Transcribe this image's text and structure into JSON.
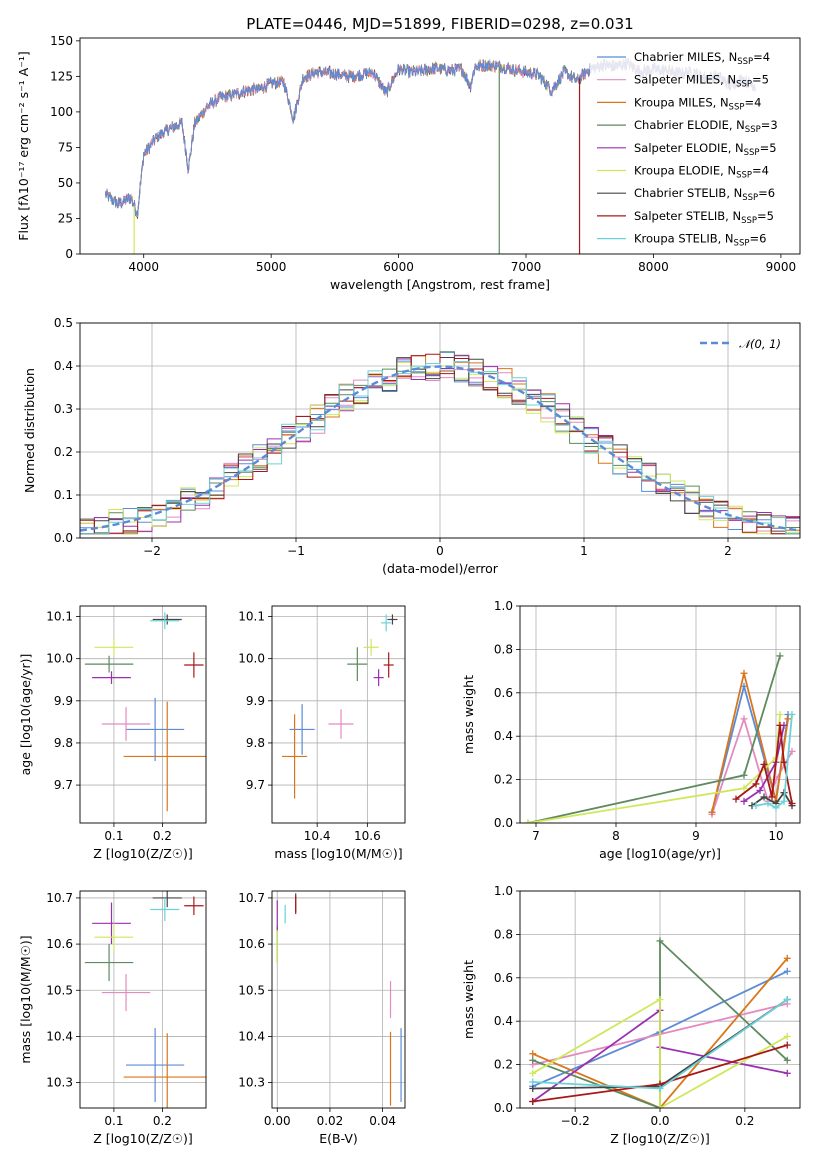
{
  "figure": {
    "title": "PLATE=0446, MJD=51899, FIBERID=0298, z=0.031"
  },
  "series_styles": [
    {
      "name": "Chabrier MILES",
      "nssp": "4",
      "color": "#5b8bd6"
    },
    {
      "name": "Salpeter MILES",
      "nssp": "5",
      "color": "#e48ac2"
    },
    {
      "name": "Kroupa MILES",
      "nssp": "4",
      "color": "#d9761a"
    },
    {
      "name": "Chabrier ELODIE",
      "nssp": "3",
      "color": "#5e8a5e"
    },
    {
      "name": "Salpeter ELODIE",
      "nssp": "5",
      "color": "#9a30b0"
    },
    {
      "name": "Kroupa ELODIE",
      "nssp": "4",
      "color": "#cfe85a"
    },
    {
      "name": "Chabrier STELIB",
      "nssp": "6",
      "color": "#454545"
    },
    {
      "name": "Salpeter STELIB",
      "nssp": "5",
      "color": "#a81818"
    },
    {
      "name": "Kroupa STELIB",
      "nssp": "6",
      "color": "#6ad2d8"
    }
  ],
  "chart_data": [
    {
      "id": "spectrum",
      "type": "line",
      "title": "PLATE=0446, MJD=51899, FIBERID=0298, z=0.031",
      "xlabel": "wavelength [Angstrom, rest frame]",
      "ylabel": "Flux [fλ10⁻¹⁷ erg cm⁻² s⁻¹ A⁻¹]",
      "xlim": [
        3500,
        9150
      ],
      "ylim": [
        0,
        152
      ],
      "xticks": [
        4000,
        5000,
        6000,
        7000,
        8000,
        9000
      ],
      "yticks": [
        0,
        25,
        50,
        75,
        100,
        125,
        150
      ],
      "grid": false,
      "legend": "right",
      "legend_entries": [
        "Chabrier MILES, N_SSP=4",
        "Salpeter MILES, N_SSP=5",
        "Kroupa MILES, N_SSP=4",
        "Chabrier ELODIE, N_SSP=3",
        "Salpeter ELODIE, N_SSP=5",
        "Kroupa ELODIE, N_SSP=4",
        "Chabrier STELIB, N_SSP=6",
        "Salpeter STELIB, N_SSP=5",
        "Kroupa STELIB, N_SSP=6"
      ],
      "envelope": {
        "x": [
          3700,
          3800,
          3900,
          3950,
          4000,
          4100,
          4200,
          4300,
          4350,
          4400,
          4500,
          4600,
          4700,
          4800,
          4900,
          5000,
          5100,
          5175,
          5250,
          5350,
          5500,
          5600,
          5700,
          5800,
          5900,
          6000,
          6100,
          6200,
          6300,
          6400,
          6500,
          6563,
          6600,
          6700,
          6800,
          6900,
          7000,
          7100,
          7200,
          7300,
          7400,
          7500,
          7600,
          7700,
          7800,
          7900,
          8000,
          8100,
          8200,
          8300,
          8400,
          8500,
          8600,
          8700,
          8800
        ],
        "y": [
          42,
          35,
          40,
          28,
          70,
          82,
          88,
          92,
          60,
          92,
          104,
          110,
          112,
          115,
          116,
          120,
          121,
          95,
          124,
          128,
          127,
          125,
          126,
          128,
          113,
          130,
          128,
          129,
          131,
          129,
          130,
          118,
          132,
          133,
          132,
          130,
          128,
          126,
          115,
          128,
          122,
          130,
          133,
          132,
          134,
          128,
          130,
          129,
          127,
          128,
          124,
          125,
          119,
          123,
          118
        ]
      },
      "dropouts": [
        {
          "series": "Kroupa ELODIE",
          "x": 3925
        },
        {
          "series": "Chabrier ELODIE",
          "x": 6790
        },
        {
          "series": "Salpeter STELIB",
          "x": 7420
        }
      ]
    },
    {
      "id": "residuals",
      "type": "histogram",
      "xlabel": "(data-model)/error",
      "ylabel": "Normed distribution",
      "xlim": [
        -2.5,
        2.5
      ],
      "ylim": [
        0,
        0.5
      ],
      "xticks": [
        -2,
        -1,
        0,
        1,
        2
      ],
      "yticks": [
        0.0,
        0.1,
        0.2,
        0.3,
        0.4,
        0.5
      ],
      "grid": true,
      "legend": "top-right",
      "reference_curve": "𝒩(0, 1)",
      "bin_width": 0.1
    },
    {
      "id": "age-vs-Z",
      "type": "scatter",
      "xlabel": "Z [log10(Z/Z☉)]",
      "ylabel": "age  [log10(age/yr)]",
      "xlim": [
        0.03,
        0.29
      ],
      "ylim": [
        9.61,
        10.125
      ],
      "xticks": [
        0.1,
        0.2
      ],
      "yticks": [
        9.7,
        9.8,
        9.9,
        10.0,
        10.1
      ],
      "grid": true,
      "points": [
        {
          "series": "Chabrier MILES",
          "x": 0.185,
          "y": 9.832,
          "xerr": 0.06,
          "yerr": 0.075
        },
        {
          "series": "Salpeter MILES",
          "x": 0.125,
          "y": 9.845,
          "xerr": 0.05,
          "yerr": 0.04
        },
        {
          "series": "Kroupa MILES",
          "x": 0.21,
          "y": 9.768,
          "xerr": 0.09,
          "yerr": 0.13
        },
        {
          "series": "Chabrier ELODIE",
          "x": 0.09,
          "y": 9.987,
          "xerr": 0.05,
          "yerr": 0.02
        },
        {
          "series": "Salpeter ELODIE",
          "x": 0.095,
          "y": 9.955,
          "xerr": 0.04,
          "yerr": 0.015
        },
        {
          "series": "Kroupa ELODIE",
          "x": 0.1,
          "y": 10.027,
          "xerr": 0.04,
          "yerr": 0.02
        },
        {
          "series": "Chabrier STELIB",
          "x": 0.21,
          "y": 10.093,
          "xerr": 0.03,
          "yerr": 0.012
        },
        {
          "series": "Salpeter STELIB",
          "x": 0.265,
          "y": 9.985,
          "xerr": 0.02,
          "yerr": 0.03
        },
        {
          "series": "Kroupa STELIB",
          "x": 0.205,
          "y": 10.09,
          "xerr": 0.03,
          "yerr": 0.02
        }
      ]
    },
    {
      "id": "age-vs-mass",
      "type": "scatter",
      "xlabel": "mass [log10(M/M☉)]",
      "ylabel": "",
      "xlim": [
        10.22,
        10.75
      ],
      "ylim": [
        9.61,
        10.125
      ],
      "xticks": [
        10.4,
        10.6
      ],
      "yticks": [
        9.7,
        9.8,
        9.9,
        10.0,
        10.1
      ],
      "grid": true,
      "points": [
        {
          "series": "Chabrier MILES",
          "x": 10.34,
          "y": 9.832,
          "xerr": 0.05,
          "yerr": 0.06
        },
        {
          "series": "Salpeter MILES",
          "x": 10.495,
          "y": 9.845,
          "xerr": 0.05,
          "yerr": 0.035
        },
        {
          "series": "Kroupa MILES",
          "x": 10.31,
          "y": 9.768,
          "xerr": 0.05,
          "yerr": 0.1
        },
        {
          "series": "Chabrier ELODIE",
          "x": 10.56,
          "y": 9.987,
          "xerr": 0.04,
          "yerr": 0.04
        },
        {
          "series": "Salpeter ELODIE",
          "x": 10.645,
          "y": 9.955,
          "xerr": 0.02,
          "yerr": 0.02
        },
        {
          "series": "Kroupa ELODIE",
          "x": 10.615,
          "y": 10.027,
          "xerr": 0.03,
          "yerr": 0.02
        },
        {
          "series": "Chabrier STELIB",
          "x": 10.7,
          "y": 10.093,
          "xerr": 0.02,
          "yerr": 0.012
        },
        {
          "series": "Salpeter STELIB",
          "x": 10.685,
          "y": 9.985,
          "xerr": 0.02,
          "yerr": 0.03
        },
        {
          "series": "Kroupa STELIB",
          "x": 10.675,
          "y": 10.085,
          "xerr": 0.02,
          "yerr": 0.02
        }
      ]
    },
    {
      "id": "mass-weight-vs-age",
      "type": "line",
      "xlabel": "age  [log10(age/yr)]",
      "ylabel": "mass weight",
      "xlim": [
        6.8,
        10.3
      ],
      "ylim": [
        0,
        1
      ],
      "xticks": [
        7,
        8,
        9,
        10
      ],
      "yticks": [
        0.0,
        0.2,
        0.4,
        0.6,
        0.8,
        1.0
      ],
      "grid": true,
      "series": [
        {
          "name": "Chabrier MILES",
          "x": [
            9.2,
            9.6,
            10.0,
            10.15
          ],
          "y": [
            0.05,
            0.63,
            0.1,
            0.5
          ]
        },
        {
          "name": "Salpeter MILES",
          "x": [
            9.2,
            9.6,
            9.9,
            10.0,
            10.2
          ],
          "y": [
            0.04,
            0.48,
            0.1,
            0.2,
            0.33
          ]
        },
        {
          "name": "Kroupa MILES",
          "x": [
            9.2,
            9.6,
            10.0,
            10.15
          ],
          "y": [
            0.05,
            0.69,
            0.1,
            0.48
          ]
        },
        {
          "name": "Chabrier ELODIE",
          "x": [
            6.9,
            9.6,
            10.05
          ],
          "y": [
            0.0,
            0.22,
            0.77
          ]
        },
        {
          "name": "Salpeter ELODIE",
          "x": [
            9.6,
            9.8,
            10.0,
            10.1
          ],
          "y": [
            0.1,
            0.15,
            0.28,
            0.45
          ]
        },
        {
          "name": "Kroupa ELODIE",
          "x": [
            6.9,
            9.6,
            10.0,
            10.05
          ],
          "y": [
            0.0,
            0.16,
            0.3,
            0.5
          ]
        },
        {
          "name": "Chabrier STELIB",
          "x": [
            9.7,
            9.85,
            10.0,
            10.1,
            10.2
          ],
          "y": [
            0.08,
            0.12,
            0.09,
            0.14,
            0.08
          ]
        },
        {
          "name": "Salpeter STELIB",
          "x": [
            9.5,
            9.75,
            9.85,
            9.95,
            10.05,
            10.1,
            10.2
          ],
          "y": [
            0.11,
            0.18,
            0.27,
            0.12,
            0.45,
            0.28,
            0.09
          ]
        },
        {
          "name": "Kroupa STELIB",
          "x": [
            9.75,
            9.9,
            10.0,
            10.1,
            10.2
          ],
          "y": [
            0.08,
            0.09,
            0.07,
            0.1,
            0.5
          ]
        }
      ]
    },
    {
      "id": "mass-vs-Z",
      "type": "scatter",
      "xlabel": "Z [log10(Z/Z☉)]",
      "ylabel": "mass [log10(M/M☉)]",
      "xlim": [
        0.03,
        0.29
      ],
      "ylim": [
        10.245,
        10.715
      ],
      "xticks": [
        0.1,
        0.2
      ],
      "yticks": [
        10.3,
        10.4,
        10.5,
        10.6,
        10.7
      ],
      "grid": true,
      "points": [
        {
          "series": "Chabrier MILES",
          "x": 0.185,
          "y": 10.338,
          "xerr": 0.06,
          "yerr": 0.08
        },
        {
          "series": "Salpeter MILES",
          "x": 0.125,
          "y": 10.495,
          "xerr": 0.05,
          "yerr": 0.04
        },
        {
          "series": "Kroupa MILES",
          "x": 0.21,
          "y": 10.312,
          "xerr": 0.09,
          "yerr": 0.095
        },
        {
          "series": "Chabrier ELODIE",
          "x": 0.09,
          "y": 10.56,
          "xerr": 0.05,
          "yerr": 0.04
        },
        {
          "series": "Salpeter ELODIE",
          "x": 0.095,
          "y": 10.645,
          "xerr": 0.04,
          "yerr": 0.045
        },
        {
          "series": "Kroupa ELODIE",
          "x": 0.1,
          "y": 10.615,
          "xerr": 0.04,
          "yerr": 0.03
        },
        {
          "series": "Chabrier STELIB",
          "x": 0.21,
          "y": 10.7,
          "xerr": 0.03,
          "yerr": 0.02
        },
        {
          "series": "Salpeter STELIB",
          "x": 0.265,
          "y": 10.683,
          "xerr": 0.02,
          "yerr": 0.02
        },
        {
          "series": "Kroupa STELIB",
          "x": 0.205,
          "y": 10.675,
          "xerr": 0.03,
          "yerr": 0.025
        }
      ]
    },
    {
      "id": "mass-vs-EBV",
      "type": "scatter",
      "xlabel": "E(B-V)",
      "ylabel": "",
      "xlim": [
        -0.002,
        0.0485
      ],
      "ylim": [
        10.245,
        10.715
      ],
      "xticks": [
        0.0,
        0.02,
        0.04
      ],
      "xticklabels": [
        "0.00",
        "0.02",
        "0.04"
      ],
      "yticks": [
        10.3,
        10.4,
        10.5,
        10.6,
        10.7
      ],
      "grid": true,
      "points": [
        {
          "series": "Chabrier MILES",
          "x": 0.047,
          "y": 10.338,
          "xerr": 0,
          "yerr": 0.08
        },
        {
          "series": "Salpeter MILES",
          "x": 0.043,
          "y": 10.48,
          "xerr": 0,
          "yerr": 0.04
        },
        {
          "series": "Kroupa MILES",
          "x": 0.043,
          "y": 10.33,
          "xerr": 0,
          "yerr": 0.08
        },
        {
          "series": "Chabrier ELODIE",
          "x": 0.0,
          "y": 10.6,
          "xerr": 0,
          "yerr": 0.04
        },
        {
          "series": "Salpeter ELODIE",
          "x": 0.0,
          "y": 10.66,
          "xerr": 0,
          "yerr": 0.035
        },
        {
          "series": "Kroupa ELODIE",
          "x": 0.0,
          "y": 10.595,
          "xerr": 0,
          "yerr": 0.035
        },
        {
          "series": "Chabrier STELIB",
          "x": 0.007,
          "y": 10.69,
          "xerr": 0,
          "yerr": 0.02
        },
        {
          "series": "Salpeter STELIB",
          "x": 0.007,
          "y": 10.685,
          "xerr": 0,
          "yerr": 0.02
        },
        {
          "series": "Kroupa STELIB",
          "x": 0.003,
          "y": 10.665,
          "xerr": 0,
          "yerr": 0.02
        }
      ]
    },
    {
      "id": "mass-weight-vs-Z",
      "type": "line",
      "xlabel": "Z [log10(Z/Z☉)]",
      "ylabel": "mass weight",
      "xlim": [
        -0.33,
        0.33
      ],
      "ylim": [
        0,
        1
      ],
      "xticks": [
        -0.2,
        0.0,
        0.2
      ],
      "xticklabels": [
        "−0.2",
        "0.0",
        "0.2"
      ],
      "yticks": [
        0.0,
        0.2,
        0.4,
        0.6,
        0.8,
        1.0
      ],
      "grid": true,
      "series": [
        {
          "name": "Chabrier MILES",
          "x": [
            -0.3,
            0.0,
            0.3
          ],
          "y": [
            0.1,
            0.35,
            0.63
          ]
        },
        {
          "name": "Salpeter MILES",
          "x": [
            -0.3,
            0.3
          ],
          "y": [
            0.2,
            0.48
          ]
        },
        {
          "name": "Kroupa MILES",
          "x": [
            -0.3,
            0.0,
            0.3
          ],
          "y": [
            0.25,
            0.0,
            0.69
          ]
        },
        {
          "name": "Chabrier ELODIE",
          "x": [
            -0.3,
            0.0,
            0.0,
            0.3
          ],
          "y": [
            0.22,
            0.0,
            0.77,
            0.22
          ]
        },
        {
          "name": "Salpeter ELODIE",
          "x": [
            -0.3,
            0.0,
            0.0,
            0.3
          ],
          "y": [
            0.03,
            0.45,
            0.28,
            0.16
          ]
        },
        {
          "name": "Kroupa ELODIE",
          "x": [
            -0.3,
            0.0,
            0.0,
            0.3
          ],
          "y": [
            0.16,
            0.5,
            0.0,
            0.33
          ]
        },
        {
          "name": "Chabrier STELIB",
          "x": [
            -0.3,
            0.0,
            0.3
          ],
          "y": [
            0.09,
            0.1,
            0.5
          ]
        },
        {
          "name": "Salpeter STELIB",
          "x": [
            -0.3,
            0.0,
            0.3
          ],
          "y": [
            0.03,
            0.11,
            0.29
          ]
        },
        {
          "name": "Kroupa STELIB",
          "x": [
            -0.3,
            0.0,
            0.3
          ],
          "y": [
            0.12,
            0.09,
            0.5
          ]
        }
      ]
    }
  ]
}
